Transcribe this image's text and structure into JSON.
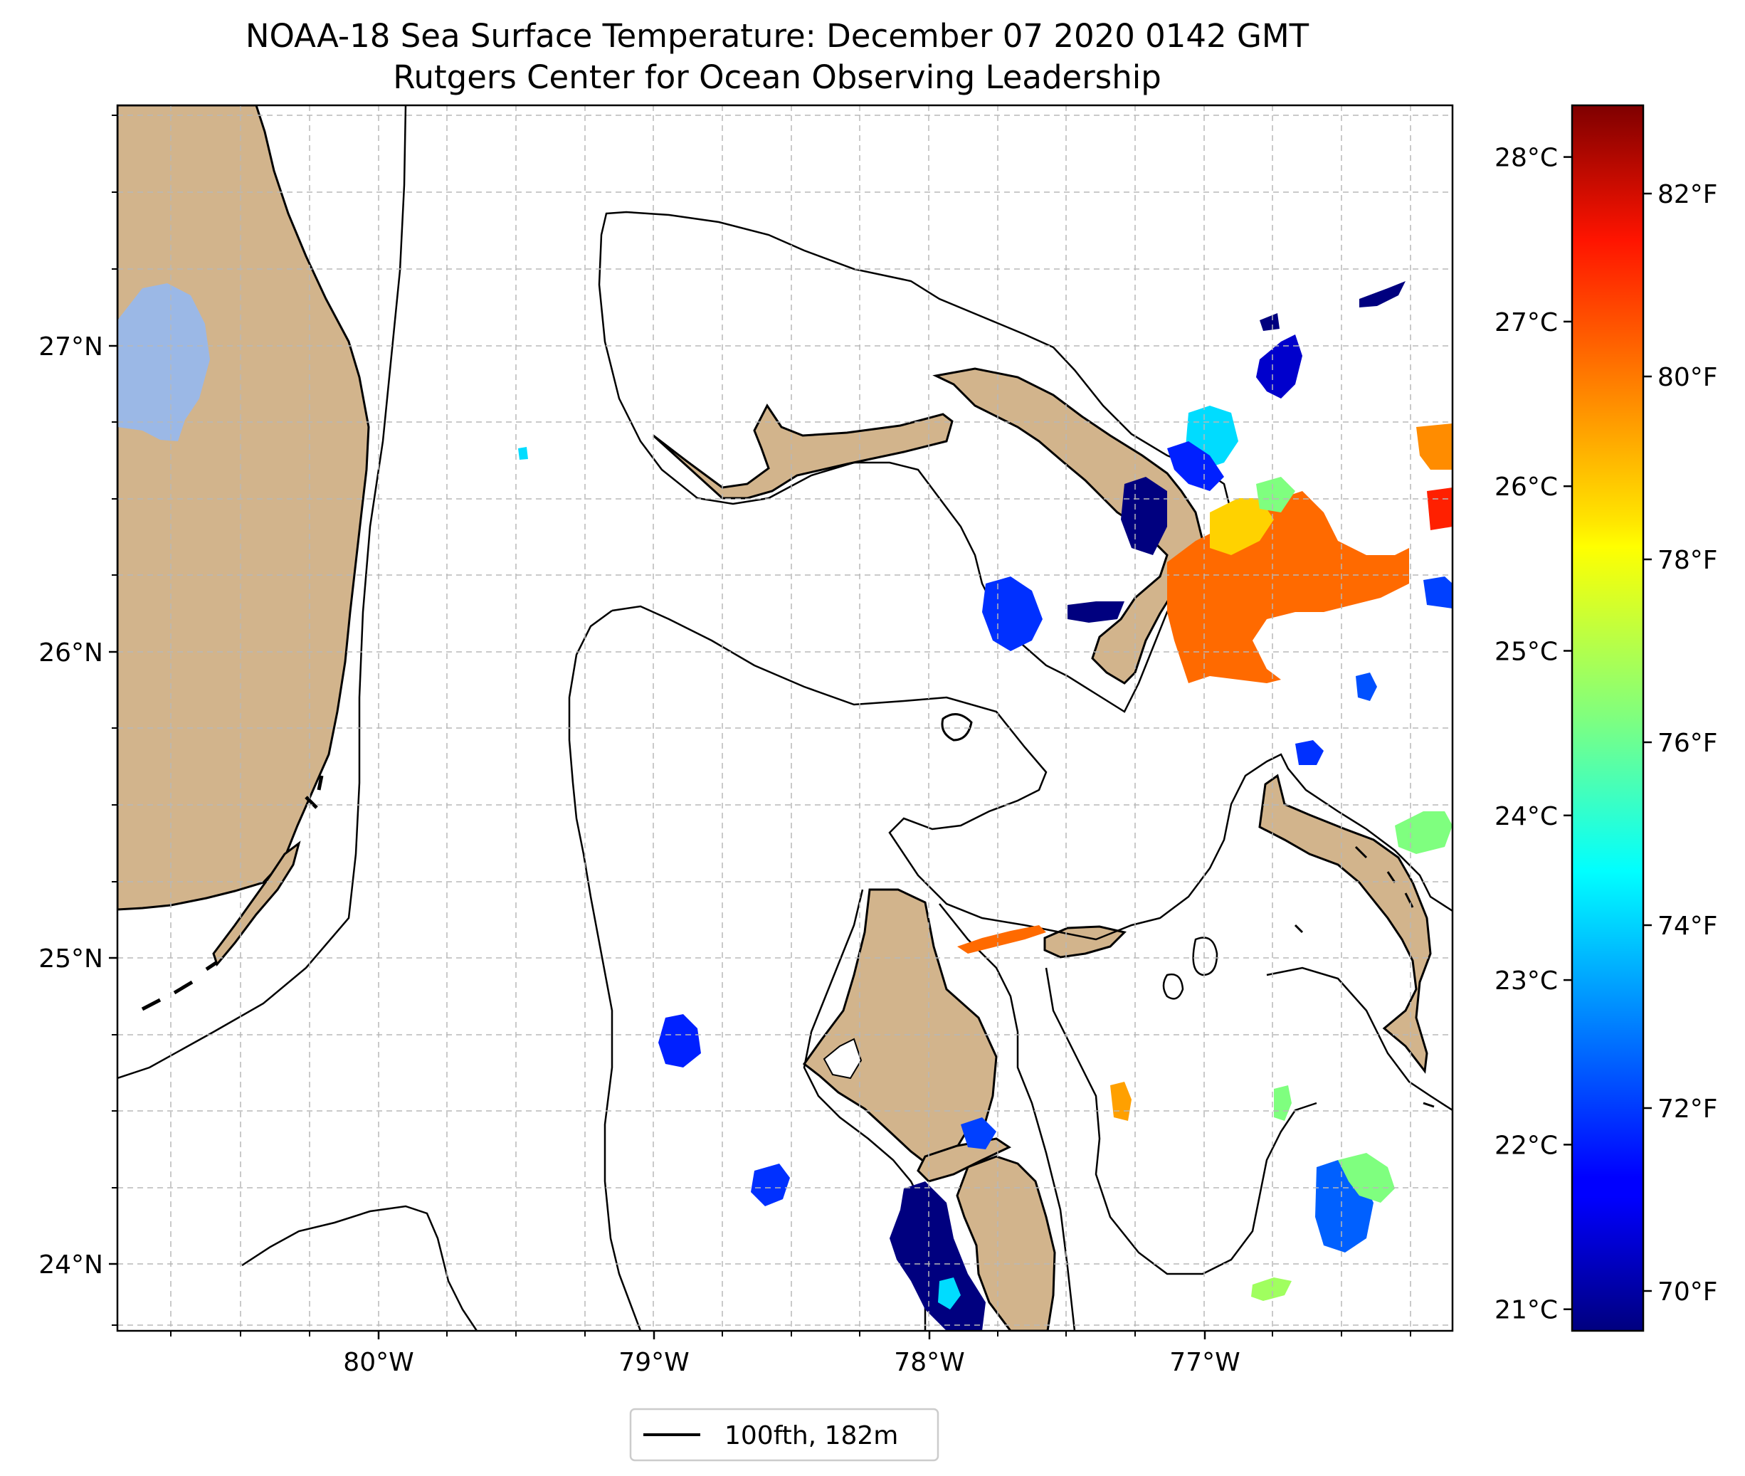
{
  "title": {
    "line1": "NOAA-18 Sea Surface Temperature: December 07 2020 0142 GMT",
    "line2": "Rutgers Center for Ocean Observing Leadership"
  },
  "axes": {
    "lat_ticks": [
      {
        "value": 27,
        "label": "27°N"
      },
      {
        "value": 26,
        "label": "26°N"
      },
      {
        "value": 25,
        "label": "25°N"
      },
      {
        "value": 24,
        "label": "24°N"
      }
    ],
    "lon_ticks": [
      {
        "value": -80,
        "label": "80°W"
      },
      {
        "value": -79,
        "label": "79°W"
      },
      {
        "value": -78,
        "label": "78°W"
      },
      {
        "value": -77,
        "label": "77°W"
      }
    ],
    "gridlines": true
  },
  "colorbar": {
    "colormap": "jet",
    "celsius_ticks": [
      {
        "value": 28,
        "label": "28°C"
      },
      {
        "value": 27,
        "label": "27°C"
      },
      {
        "value": 26,
        "label": "26°C"
      },
      {
        "value": 25,
        "label": "25°C"
      },
      {
        "value": 24,
        "label": "24°C"
      },
      {
        "value": 23,
        "label": "23°C"
      },
      {
        "value": 22,
        "label": "22°C"
      },
      {
        "value": 21,
        "label": "21°C"
      }
    ],
    "fahrenheit_ticks": [
      {
        "value": 82,
        "label": "82°F"
      },
      {
        "value": 80,
        "label": "80°F"
      },
      {
        "value": 78,
        "label": "78°F"
      },
      {
        "value": 76,
        "label": "76°F"
      },
      {
        "value": 74,
        "label": "74°F"
      },
      {
        "value": 72,
        "label": "72°F"
      },
      {
        "value": 70,
        "label": "70°F"
      }
    ]
  },
  "legend": {
    "label": "100fth, 182m",
    "placement": "bottom-center"
  },
  "colors": {
    "land": "#d2b48c",
    "lake": "#9bb8e6",
    "grid": "#b8b8b8",
    "isobath": "#000000"
  }
}
